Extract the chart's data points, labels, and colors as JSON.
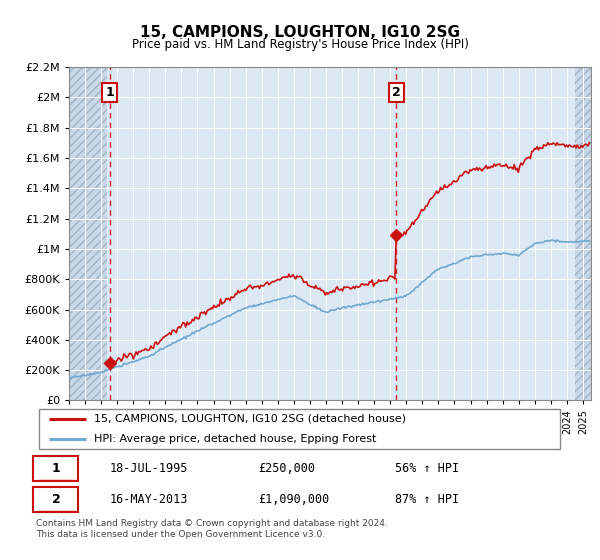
{
  "title": "15, CAMPIONS, LOUGHTON, IG10 2SG",
  "subtitle": "Price paid vs. HM Land Registry's House Price Index (HPI)",
  "legend_line1": "15, CAMPIONS, LOUGHTON, IG10 2SG (detached house)",
  "legend_line2": "HPI: Average price, detached house, Epping Forest",
  "sale1_date": "18-JUL-1995",
  "sale1_price": 250000,
  "sale1_pct": "56% ↑ HPI",
  "sale2_date": "16-MAY-2013",
  "sale2_price": 1090000,
  "sale2_pct": "87% ↑ HPI",
  "footnote": "Contains HM Land Registry data © Crown copyright and database right 2024.\nThis data is licensed under the Open Government Licence v3.0.",
  "hpi_color": "#6fa8d0",
  "price_color": "#cc1111",
  "sale_marker_color": "#cc1111",
  "vline_color": "#cc1111",
  "bg_color": "#dce9f5",
  "ylim_max": 2200000,
  "ylim_min": 0,
  "xlim_min": 1993.0,
  "xlim_max": 2025.5,
  "t_sale1": 1995.542,
  "t_sale2": 2013.375
}
